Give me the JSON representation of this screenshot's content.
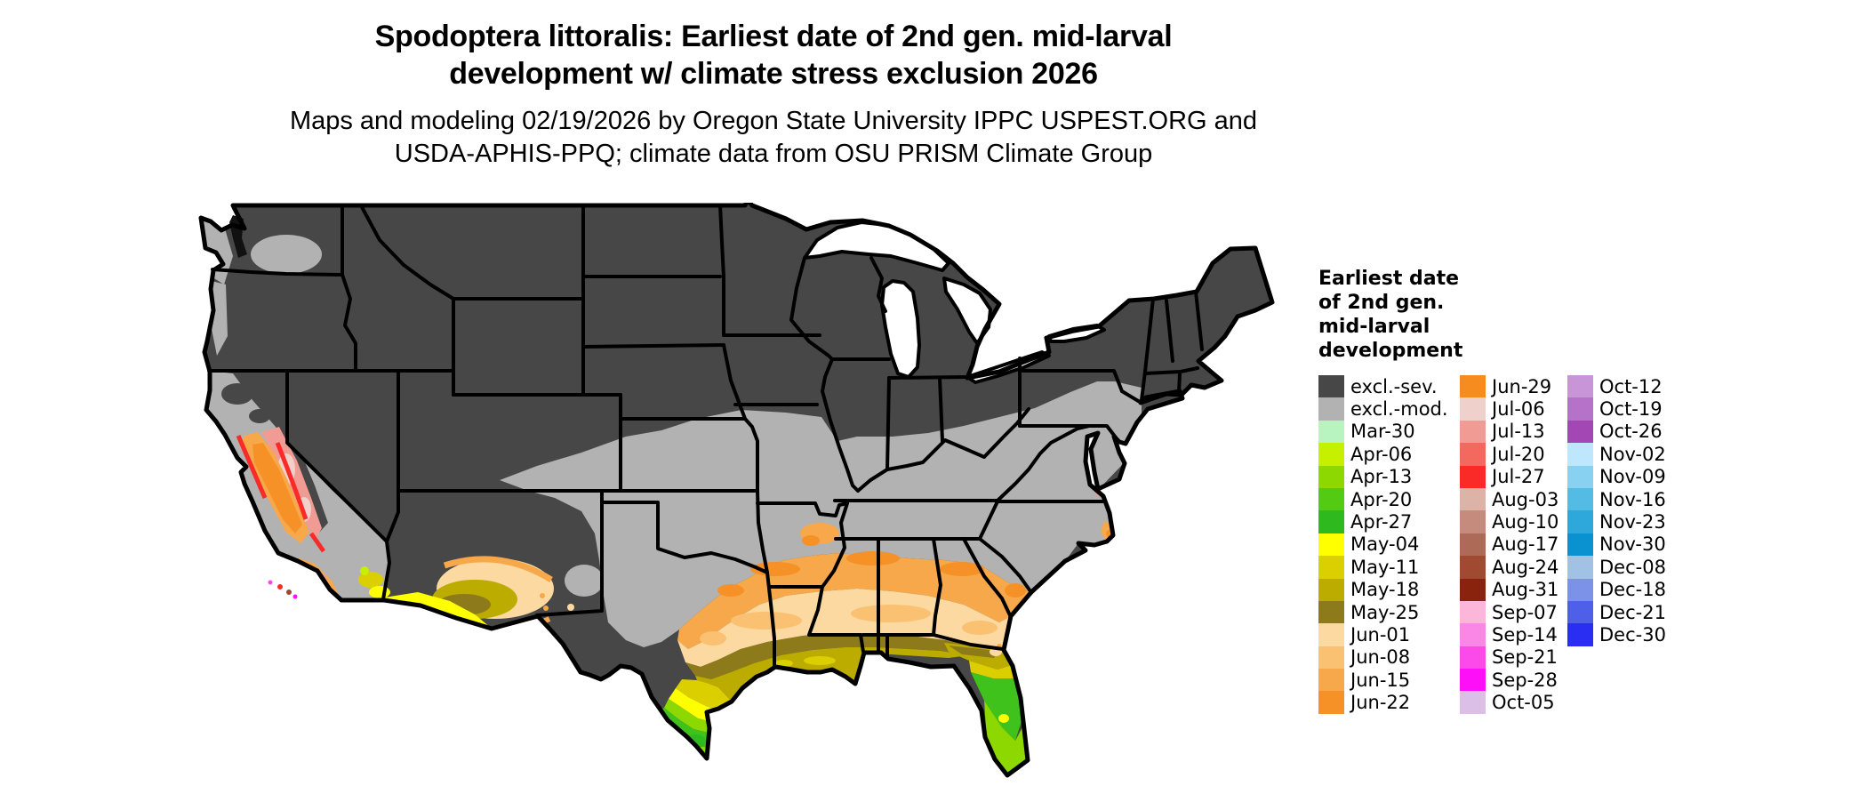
{
  "title": {
    "line1": "Spodoptera littoralis: Earliest date of 2nd gen. mid-larval",
    "line2": "development w/ climate stress exclusion 2026"
  },
  "subtitle": {
    "line1": "Maps and modeling 02/19/2026 by Oregon State University IPPC USPEST.ORG and",
    "line2": "USDA-APHIS-PPQ; climate data from OSU PRISM Climate Group"
  },
  "map": {
    "region": "Contiguous United States",
    "water_color": "#ffffff",
    "state_border_color": "#000000",
    "excluded_severe_color": "#474747",
    "excluded_moderate_color": "#b2b2b2"
  },
  "legend": {
    "title_lines": [
      "Earliest date",
      "of 2nd gen.",
      "mid-larval",
      "development"
    ],
    "columns": [
      [
        {
          "label": "excl.-sev.",
          "color": "#474747"
        },
        {
          "label": "excl.-mod.",
          "color": "#b2b2b2"
        },
        {
          "label": "Mar-30",
          "color": "#b8f4c0"
        },
        {
          "label": "Apr-06",
          "color": "#c7f000"
        },
        {
          "label": "Apr-13",
          "color": "#8cd800"
        },
        {
          "label": "Apr-20",
          "color": "#52cb12"
        },
        {
          "label": "Apr-27",
          "color": "#2eb91f"
        },
        {
          "label": "May-04",
          "color": "#ffff00"
        },
        {
          "label": "May-11",
          "color": "#dccf00"
        },
        {
          "label": "May-18",
          "color": "#bcac00"
        },
        {
          "label": "May-25",
          "color": "#8d7a1a"
        },
        {
          "label": "Jun-01",
          "color": "#fbd9a0"
        },
        {
          "label": "Jun-08",
          "color": "#f9c171"
        },
        {
          "label": "Jun-15",
          "color": "#f7a84b"
        },
        {
          "label": "Jun-22",
          "color": "#f59127"
        }
      ],
      [
        {
          "label": "Jun-29",
          "color": "#f68c1f"
        },
        {
          "label": "Jul-06",
          "color": "#f0d0cb"
        },
        {
          "label": "Jul-13",
          "color": "#f09b94"
        },
        {
          "label": "Jul-20",
          "color": "#f4695e"
        },
        {
          "label": "Jul-27",
          "color": "#f92a28"
        },
        {
          "label": "Aug-03",
          "color": "#ddb3a8"
        },
        {
          "label": "Aug-10",
          "color": "#c58c7d"
        },
        {
          "label": "Aug-17",
          "color": "#ad6a57"
        },
        {
          "label": "Aug-24",
          "color": "#a04a32"
        },
        {
          "label": "Aug-31",
          "color": "#8a230e"
        },
        {
          "label": "Sep-07",
          "color": "#fbb6da"
        },
        {
          "label": "Sep-14",
          "color": "#fa86e5"
        },
        {
          "label": "Sep-21",
          "color": "#fb49ea"
        },
        {
          "label": "Sep-28",
          "color": "#fd10f7"
        },
        {
          "label": "Oct-05",
          "color": "#dbbfe6"
        }
      ],
      [
        {
          "label": "Oct-12",
          "color": "#c795d8"
        },
        {
          "label": "Oct-19",
          "color": "#b671c9"
        },
        {
          "label": "Oct-26",
          "color": "#a347b5"
        },
        {
          "label": "Nov-02",
          "color": "#bee6fd"
        },
        {
          "label": "Nov-09",
          "color": "#88d1f0"
        },
        {
          "label": "Nov-16",
          "color": "#54bbe4"
        },
        {
          "label": "Nov-23",
          "color": "#2ea8db"
        },
        {
          "label": "Nov-30",
          "color": "#0a92d0"
        },
        {
          "label": "Dec-08",
          "color": "#a2c2e5"
        },
        {
          "label": "Dec-18",
          "color": "#7b92e8"
        },
        {
          "label": "Dec-21",
          "color": "#4e60ea"
        },
        {
          "label": "Dec-30",
          "color": "#2a2ef2"
        }
      ]
    ]
  }
}
